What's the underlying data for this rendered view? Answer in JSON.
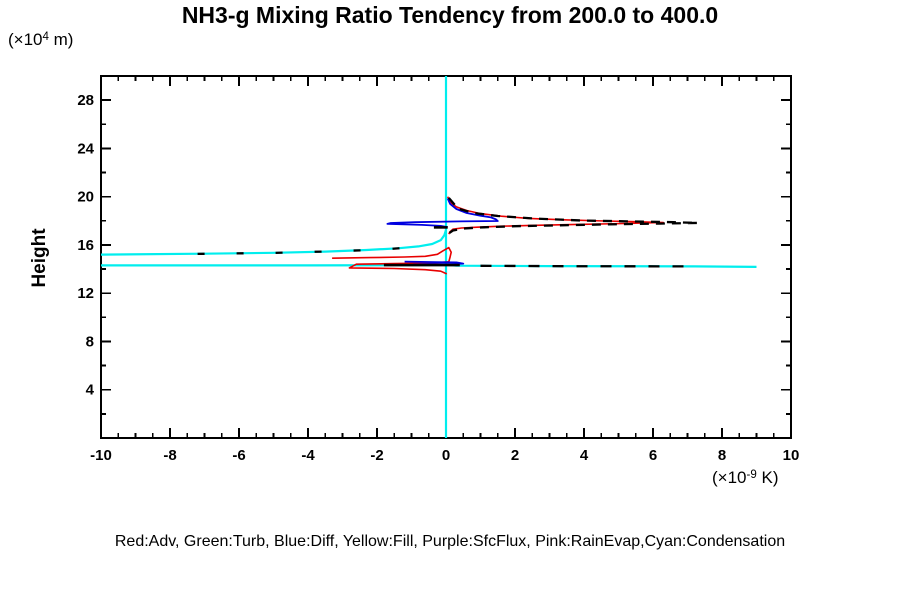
{
  "header": {
    "title": "NH3-g Mixing Ratio Tendency from 200.0 to 400.0"
  },
  "axes": {
    "y_axis_label": "Height",
    "y_units": {
      "pre": "(×10",
      "sup": "4",
      "post": " m)"
    },
    "x_units": {
      "pre": "(×10",
      "sup": "-9",
      "post": " K)"
    }
  },
  "legend": {
    "text": "Red:Adv, Green:Turb, Blue:Diff, Yellow:Fill, Purple:SfcFlux, Pink:RainEvap,Cyan:Condensation"
  },
  "colors": {
    "red": "#e80000",
    "blue": "#0000e0",
    "cyan": "#00eeee",
    "black": "#000000",
    "background": "#ffffff"
  },
  "chart_data": {
    "type": "line",
    "title": "NH3-g Mixing Ratio Tendency from 200.0 to 400.0",
    "xlabel": "(×10^-9 K)",
    "ylabel": "Height (×10^4 m)",
    "xlim": [
      -10,
      10
    ],
    "ylim": [
      0,
      30
    ],
    "x_major_ticks": [
      -10,
      -8,
      -6,
      -4,
      -2,
      0,
      2,
      4,
      6,
      8,
      10
    ],
    "x_minor_step": 0.5,
    "y_major_ticks": [
      4,
      8,
      12,
      16,
      20,
      24,
      28
    ],
    "y_minor_step": 2,
    "grid": false,
    "legend_position": "bottom",
    "series": [
      {
        "name": "condensation-zero-line",
        "color": "#00eeee",
        "width": 2.2,
        "dash": null,
        "points": [
          [
            0,
            30
          ],
          [
            0,
            0
          ]
        ]
      },
      {
        "name": "condensation-upper-branch",
        "color": "#00eeee",
        "width": 2.2,
        "dash": null,
        "points": [
          [
            -10,
            15.2
          ],
          [
            -7,
            15.27
          ],
          [
            -5,
            15.35
          ],
          [
            -3.5,
            15.45
          ],
          [
            -2.3,
            15.58
          ],
          [
            -1.4,
            15.72
          ],
          [
            -0.8,
            15.88
          ],
          [
            -0.4,
            16.08
          ],
          [
            -0.15,
            16.4
          ],
          [
            -0.05,
            16.8
          ],
          [
            0,
            17.25
          ]
        ]
      },
      {
        "name": "condensation-lower-branch",
        "color": "#00eeee",
        "width": 2.2,
        "dash": null,
        "points": [
          [
            -10,
            14.3
          ],
          [
            -4,
            14.3
          ],
          [
            -1,
            14.32
          ],
          [
            0,
            14.35
          ],
          [
            0.3,
            14.28
          ],
          [
            3,
            14.25
          ],
          [
            7.2,
            14.22
          ],
          [
            9.0,
            14.18
          ]
        ]
      },
      {
        "name": "adv-upper-peak",
        "color": "#e80000",
        "width": 1.6,
        "dash": null,
        "points": [
          [
            0.05,
            20.0
          ],
          [
            0.12,
            19.55
          ],
          [
            0.3,
            19.15
          ],
          [
            0.6,
            18.85
          ],
          [
            1.0,
            18.6
          ],
          [
            1.6,
            18.38
          ],
          [
            2.4,
            18.2
          ],
          [
            3.4,
            18.08
          ],
          [
            4.6,
            17.98
          ],
          [
            5.6,
            17.92
          ],
          [
            6.3,
            17.86
          ],
          [
            5.2,
            17.78
          ],
          [
            3.8,
            17.7
          ],
          [
            2.6,
            17.63
          ],
          [
            1.6,
            17.55
          ],
          [
            0.9,
            17.47
          ],
          [
            0.45,
            17.4
          ],
          [
            0.2,
            17.3
          ],
          [
            0.12,
            17.1
          ],
          [
            0.08,
            16.9
          ]
        ]
      },
      {
        "name": "adv-lower-peak",
        "color": "#e80000",
        "width": 1.6,
        "dash": null,
        "points": [
          [
            -3.3,
            14.9
          ],
          [
            -2.2,
            14.95
          ],
          [
            -1.2,
            15.0
          ],
          [
            -0.6,
            15.06
          ],
          [
            -0.25,
            15.22
          ],
          [
            -0.08,
            15.52
          ],
          [
            0.08,
            15.78
          ],
          [
            0.15,
            15.4
          ],
          [
            0.12,
            15.0
          ],
          [
            0.08,
            14.6
          ],
          [
            -0.4,
            14.5
          ],
          [
            -1.5,
            14.45
          ],
          [
            -2.6,
            14.4
          ],
          [
            -2.8,
            14.1
          ],
          [
            -1.5,
            14.05
          ],
          [
            -0.6,
            13.95
          ],
          [
            -0.15,
            13.82
          ],
          [
            0.02,
            13.6
          ]
        ]
      },
      {
        "name": "diff-upper-peak",
        "color": "#0000e0",
        "width": 1.8,
        "dash": null,
        "points": [
          [
            0.05,
            19.85
          ],
          [
            0.12,
            19.4
          ],
          [
            0.3,
            18.98
          ],
          [
            0.6,
            18.65
          ],
          [
            1.0,
            18.42
          ],
          [
            1.3,
            18.28
          ],
          [
            1.45,
            18.12
          ],
          [
            1.5,
            17.98
          ],
          [
            0.4,
            17.95
          ],
          [
            -0.9,
            17.88
          ],
          [
            -1.6,
            17.82
          ],
          [
            -1.7,
            17.74
          ],
          [
            -0.7,
            17.66
          ],
          [
            -0.15,
            17.58
          ],
          [
            0.05,
            17.48
          ]
        ]
      },
      {
        "name": "diff-lower-peak",
        "color": "#0000e0",
        "width": 1.8,
        "dash": null,
        "points": [
          [
            -1.2,
            14.62
          ],
          [
            -0.3,
            14.58
          ],
          [
            0.3,
            14.55
          ],
          [
            0.5,
            14.45
          ],
          [
            0.1,
            14.4
          ],
          [
            -0.5,
            14.42
          ],
          [
            -0.95,
            14.38
          ]
        ]
      },
      {
        "name": "net-dashed-upper-peak",
        "color": "#000000",
        "width": 2.3,
        "dash": "9 7",
        "points": [
          [
            0.08,
            19.9
          ],
          [
            0.35,
            19.0
          ],
          [
            0.8,
            18.65
          ],
          [
            1.5,
            18.4
          ],
          [
            2.6,
            18.18
          ],
          [
            4.0,
            18.02
          ],
          [
            5.5,
            17.94
          ],
          [
            6.6,
            17.88
          ],
          [
            7.3,
            17.83
          ],
          [
            6.2,
            17.77
          ],
          [
            4.6,
            17.7
          ],
          [
            3.2,
            17.62
          ],
          [
            2.0,
            17.55
          ],
          [
            1.1,
            17.46
          ],
          [
            0.5,
            17.36
          ],
          [
            0.2,
            17.2
          ],
          [
            0.1,
            17.0
          ]
        ]
      },
      {
        "name": "net-dashed-condensation-upper",
        "color": "#000000",
        "width": 2.3,
        "dash": "7 32",
        "points": [
          [
            -7.2,
            15.26
          ],
          [
            -5,
            15.34
          ],
          [
            -3.4,
            15.46
          ],
          [
            -2.0,
            15.6
          ],
          [
            -1.2,
            15.75
          ]
        ]
      },
      {
        "name": "net-dashed-condensation-lower",
        "color": "#000000",
        "width": 2.3,
        "dash": "11 13",
        "points": [
          [
            1.0,
            14.27
          ],
          [
            3.5,
            14.24
          ],
          [
            7.2,
            14.22
          ]
        ]
      },
      {
        "name": "net-segment-upper",
        "color": "#000000",
        "width": 2.6,
        "dash": null,
        "points": [
          [
            -0.35,
            17.45
          ],
          [
            0.05,
            17.45
          ]
        ]
      },
      {
        "name": "net-segment-lower",
        "color": "#000000",
        "width": 2.6,
        "dash": null,
        "points": [
          [
            -1.8,
            14.33
          ],
          [
            0.4,
            14.33
          ]
        ]
      }
    ]
  }
}
